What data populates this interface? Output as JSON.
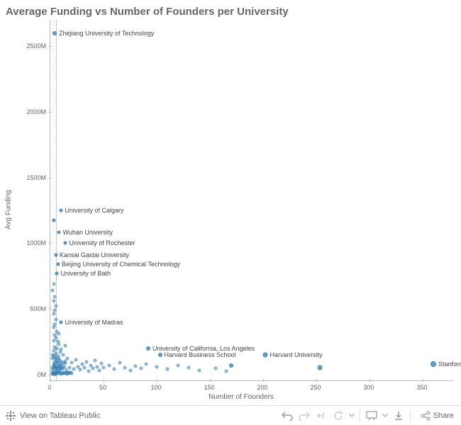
{
  "title": "Average Funding vs Number of Founders per University",
  "title_fontsize": 15,
  "title_color": "#666666",
  "chart": {
    "type": "scatter",
    "xlabel": "Number of Founders",
    "ylabel": "Avg Funding",
    "label_fontsize": 10,
    "label_color": "#666666",
    "tick_fontsize": 9,
    "tick_color": "#666666",
    "background_color": "#ffffff",
    "axis_color": "#bbbbbb",
    "refline_x": 5,
    "refline_color": "#999999",
    "xlim": [
      0,
      380
    ],
    "ylim": [
      -50,
      2700
    ],
    "xticks": [
      0,
      50,
      100,
      150,
      200,
      250,
      300,
      350
    ],
    "yticks": [
      0,
      500,
      1000,
      1500,
      2000,
      2500
    ],
    "ytick_suffix": "M",
    "marker_border_color": "#1f6faa",
    "marker_fill_color": "#4a90c2",
    "marker_fill_opacity": 0.6,
    "marker_size": 5,
    "labeled_points": [
      {
        "x": 4,
        "y": 2600,
        "label": "Zhejiang University of Technology",
        "size": 6
      },
      {
        "x": 10,
        "y": 1250,
        "label": "University of Calgary",
        "size": 5
      },
      {
        "x": 3,
        "y": 1175,
        "label": "",
        "size": 5
      },
      {
        "x": 8,
        "y": 1080,
        "label": "Wuhan University",
        "size": 5
      },
      {
        "x": 14,
        "y": 1000,
        "label": "University of Rochester",
        "size": 5
      },
      {
        "x": 5,
        "y": 910,
        "label": "Kansai Gaidai University",
        "size": 5
      },
      {
        "x": 7,
        "y": 840,
        "label": "Beijing University of Chemical Technology",
        "size": 5
      },
      {
        "x": 6,
        "y": 770,
        "label": "University of Bath",
        "size": 5
      },
      {
        "x": 10,
        "y": 400,
        "label": "University of Madras",
        "size": 5
      },
      {
        "x": 92,
        "y": 200,
        "label": "University of California, Los Angeles",
        "size": 6
      },
      {
        "x": 103,
        "y": 150,
        "label": "Harvard Business School",
        "size": 6
      },
      {
        "x": 202,
        "y": 150,
        "label": "Harvard University",
        "size": 7
      },
      {
        "x": 360,
        "y": 80,
        "label": "Stanford University",
        "size": 8
      },
      {
        "x": 253,
        "y": 55,
        "label": "",
        "size": 7
      },
      {
        "x": 170,
        "y": 70,
        "label": "",
        "size": 6
      }
    ],
    "cluster_points": [
      [
        2,
        30
      ],
      [
        3,
        45
      ],
      [
        4,
        20
      ],
      [
        5,
        60
      ],
      [
        6,
        35
      ],
      [
        7,
        50
      ],
      [
        8,
        25
      ],
      [
        9,
        70
      ],
      [
        10,
        40
      ],
      [
        3,
        80
      ],
      [
        4,
        95
      ],
      [
        5,
        110
      ],
      [
        6,
        55
      ],
      [
        7,
        90
      ],
      [
        8,
        120
      ],
      [
        9,
        45
      ],
      [
        10,
        100
      ],
      [
        12,
        65
      ],
      [
        14,
        85
      ],
      [
        15,
        30
      ],
      [
        16,
        120
      ],
      [
        18,
        55
      ],
      [
        20,
        90
      ],
      [
        22,
        40
      ],
      [
        24,
        110
      ],
      [
        26,
        60
      ],
      [
        28,
        35
      ],
      [
        30,
        80
      ],
      [
        32,
        50
      ],
      [
        34,
        95
      ],
      [
        36,
        25
      ],
      [
        38,
        70
      ],
      [
        40,
        45
      ],
      [
        42,
        105
      ],
      [
        44,
        60
      ],
      [
        46,
        30
      ],
      [
        48,
        85
      ],
      [
        50,
        50
      ],
      [
        55,
        70
      ],
      [
        60,
        40
      ],
      [
        65,
        90
      ],
      [
        70,
        55
      ],
      [
        75,
        30
      ],
      [
        80,
        65
      ],
      [
        85,
        45
      ],
      [
        90,
        80
      ],
      [
        100,
        60
      ],
      [
        110,
        40
      ],
      [
        120,
        70
      ],
      [
        130,
        50
      ],
      [
        2,
        150
      ],
      [
        3,
        180
      ],
      [
        4,
        210
      ],
      [
        5,
        160
      ],
      [
        6,
        200
      ],
      [
        7,
        140
      ],
      [
        8,
        230
      ],
      [
        9,
        170
      ],
      [
        10,
        190
      ],
      [
        12,
        150
      ],
      [
        14,
        220
      ],
      [
        3,
        260
      ],
      [
        4,
        300
      ],
      [
        5,
        280
      ],
      [
        6,
        330
      ],
      [
        7,
        250
      ],
      [
        8,
        310
      ],
      [
        3,
        360
      ],
      [
        4,
        380
      ],
      [
        5,
        420
      ],
      [
        3,
        460
      ],
      [
        4,
        490
      ],
      [
        5,
        520
      ],
      [
        3,
        560
      ],
      [
        4,
        590
      ],
      [
        2,
        640
      ],
      [
        3,
        690
      ],
      [
        2,
        8
      ],
      [
        3,
        12
      ],
      [
        4,
        5
      ],
      [
        5,
        15
      ],
      [
        6,
        10
      ],
      [
        7,
        18
      ],
      [
        8,
        8
      ],
      [
        9,
        14
      ],
      [
        10,
        6
      ],
      [
        11,
        12
      ],
      [
        12,
        9
      ],
      [
        13,
        15
      ],
      [
        14,
        7
      ],
      [
        15,
        11
      ],
      [
        16,
        5
      ],
      [
        17,
        13
      ],
      [
        18,
        8
      ],
      [
        19,
        14
      ],
      [
        20,
        10
      ],
      [
        2,
        55
      ],
      [
        3,
        65
      ],
      [
        4,
        75
      ],
      [
        5,
        48
      ],
      [
        6,
        88
      ],
      [
        7,
        68
      ],
      [
        8,
        105
      ],
      [
        9,
        58
      ],
      [
        10,
        78
      ],
      [
        11,
        42
      ],
      [
        12,
        92
      ],
      [
        13,
        52
      ],
      [
        14,
        102
      ],
      [
        2,
        125
      ],
      [
        3,
        135
      ],
      [
        4,
        145
      ],
      [
        5,
        125
      ],
      [
        2,
        3
      ],
      [
        3,
        4
      ],
      [
        4,
        2
      ],
      [
        5,
        5
      ],
      [
        140,
        30
      ],
      [
        155,
        45
      ],
      [
        165,
        25
      ]
    ]
  },
  "toolbar": {
    "view_label": "View on Tableau Public",
    "share_label": "Share",
    "icons": {
      "logo": "tableau-logo-icon",
      "undo": "undo-icon",
      "redo": "redo-icon",
      "revert": "revert-icon",
      "refresh": "refresh-icon",
      "dropdown": "chevron-down-icon",
      "presentation": "presentation-icon",
      "download": "download-icon",
      "share": "share-icon"
    }
  }
}
